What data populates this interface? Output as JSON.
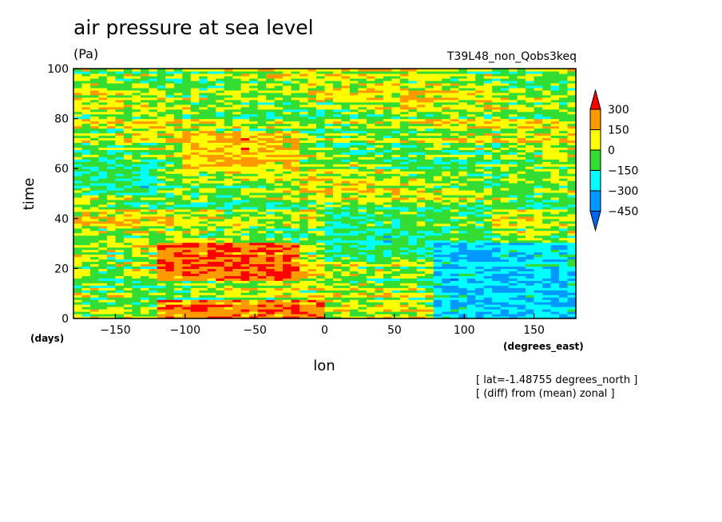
{
  "chart_data": {
    "type": "heatmap",
    "title": "air pressure at sea level",
    "units": "(Pa)",
    "experiment": "T39L48_non_Qobs3keq",
    "xlabel": "lon",
    "xunit": "(degrees_east)",
    "ylabel": "time",
    "yunit": "(days)",
    "xlim": [
      -180,
      180
    ],
    "ylim": [
      0,
      100
    ],
    "xticks": [
      -150,
      -100,
      -50,
      0,
      50,
      100,
      150
    ],
    "yticks": [
      0,
      20,
      40,
      60,
      80,
      100
    ],
    "colorbar": {
      "labels": [
        300,
        150,
        0,
        -150,
        -300,
        -450
      ],
      "colors": [
        "#ff0000",
        "#ff9900",
        "#ffff00",
        "#33dd33",
        "#00ffff",
        "#0099ff",
        "#0066ee"
      ]
    },
    "description_values": {
      "region_patterns": [
        {
          "lon": [
            -120,
            -20
          ],
          "time": [
            15,
            30
          ],
          "level": 300
        },
        {
          "lon": [
            -120,
            0
          ],
          "time": [
            0,
            8
          ],
          "level": 300
        },
        {
          "lon": [
            0,
            120
          ],
          "time": [
            25,
            45
          ],
          "level": -150
        },
        {
          "lon": [
            80,
            180
          ],
          "time": [
            0,
            30
          ],
          "level": -300
        },
        {
          "lon": [
            -180,
            -120
          ],
          "time": [
            50,
            62
          ],
          "level": -150
        },
        {
          "lon": [
            -100,
            -20
          ],
          "time": [
            60,
            75
          ],
          "level": 150
        }
      ]
    }
  },
  "annotations": {
    "lat": "[ lat=-1.48755 degrees_north ]",
    "note": "[ (diff) from (mean) zonal ]"
  }
}
